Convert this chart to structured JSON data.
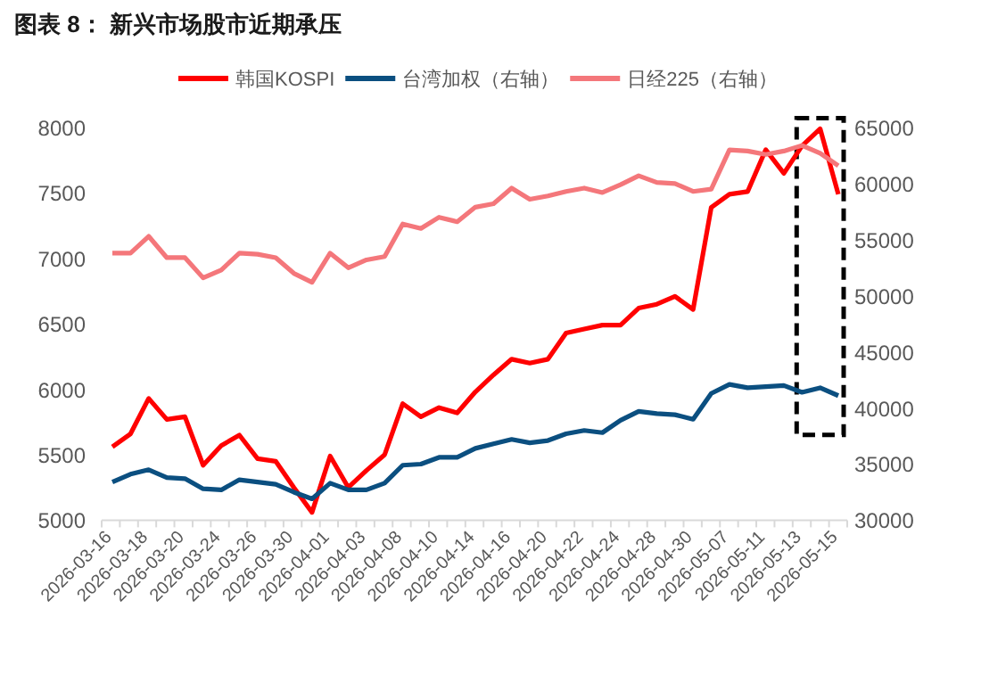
{
  "chart_data": {
    "type": "line",
    "title": "图表 8：  新兴市场股市近期承压",
    "categories": [
      "2026-03-16",
      null,
      "2026-03-18",
      null,
      "2026-03-20",
      null,
      "2026-03-24",
      null,
      "2026-03-26",
      null,
      "2026-03-30",
      null,
      "2026-04-01",
      null,
      "2026-04-03",
      null,
      "2026-04-08",
      null,
      "2026-04-10",
      null,
      "2026-04-14",
      null,
      "2026-04-16",
      null,
      "2026-04-20",
      null,
      "2026-04-22",
      null,
      "2026-04-24",
      null,
      "2026-04-28",
      null,
      "2026-04-30",
      null,
      "2026-05-07",
      null,
      "2026-05-11",
      null,
      "2026-05-13",
      null,
      "2026-05-15"
    ],
    "series": [
      {
        "name": "韩国KOSPI",
        "color": "#ff0000",
        "values": [
          5560,
          5660,
          5930,
          5770,
          5790,
          5420,
          5570,
          5650,
          5470,
          5450,
          5250,
          5060,
          5490,
          5250,
          5380,
          5500,
          5890,
          5790,
          5860,
          5820,
          5980,
          6110,
          6230,
          6200,
          6230,
          6430,
          6460,
          6490,
          6490,
          6620,
          6650,
          6710,
          6610,
          7390,
          7490,
          7510,
          7830,
          7650,
          7860,
          7990,
          7490
        ]
      },
      {
        "name": "台湾加权（右轴）",
        "color": "#0b4f80",
        "axis": "y2",
        "values": [
          33400,
          34100,
          34500,
          33800,
          33700,
          32800,
          32700,
          33600,
          33400,
          33200,
          32500,
          31900,
          33300,
          32700,
          32700,
          33300,
          34900,
          35000,
          35600,
          35600,
          36400,
          36800,
          37200,
          36900,
          37100,
          37700,
          38000,
          37800,
          38900,
          39700,
          39500,
          39400,
          39000,
          41300,
          42100,
          41800,
          41900,
          42000,
          41400,
          41800,
          41100
        ]
      },
      {
        "name": "日经225（右轴）",
        "color": "#f4777b",
        "axis": "y2",
        "values": [
          53800,
          53800,
          55300,
          53400,
          53400,
          51600,
          52300,
          53800,
          53700,
          53400,
          52000,
          51200,
          53800,
          52500,
          53200,
          53500,
          56400,
          56000,
          57000,
          56600,
          57900,
          58200,
          59600,
          58600,
          58900,
          59300,
          59600,
          59200,
          59900,
          60700,
          60100,
          60000,
          59300,
          59500,
          63000,
          62900,
          62600,
          62900,
          63400,
          62700,
          61600
        ]
      }
    ],
    "ylim": [
      5000,
      8000
    ],
    "yticks": [
      5000,
      5500,
      6000,
      6500,
      7000,
      7500,
      8000
    ],
    "y2lim": [
      30000,
      65000
    ],
    "y2ticks": [
      30000,
      35000,
      40000,
      45000,
      50000,
      55000,
      60000,
      65000
    ],
    "legend": "top",
    "grid": false
  }
}
